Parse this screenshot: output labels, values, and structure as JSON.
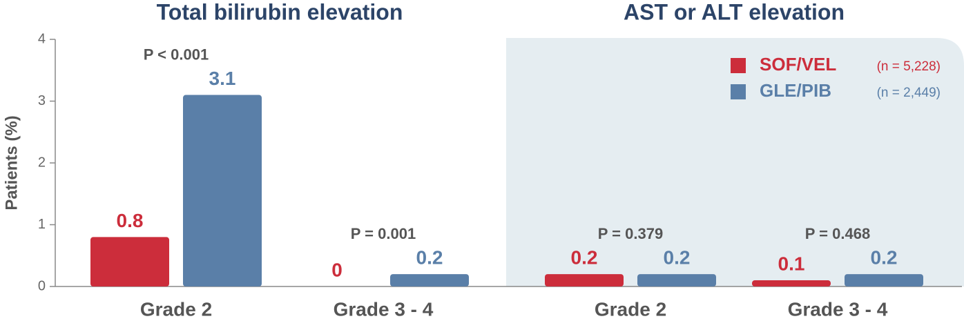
{
  "chart_data": {
    "type": "bar",
    "group_titles": [
      "Total bilirubin elevation",
      "AST or ALT elevation"
    ],
    "categories": [
      "Grade 2",
      "Grade 3 - 4",
      "Grade 2",
      "Grade 3 - 4"
    ],
    "ylabel": "Patients (%)",
    "ylim": [
      0,
      4
    ],
    "yticks": [
      0,
      1,
      2,
      3,
      4
    ],
    "series": [
      {
        "name": "SOF/VEL",
        "note": "(n = 5,228)",
        "color": "#cc2d3b",
        "values": [
          0.8,
          0,
          0.2,
          0.1
        ]
      },
      {
        "name": "GLE/PIB",
        "note": "(n = 2,449)",
        "color": "#5a7fa8",
        "values": [
          3.1,
          0.2,
          0.2,
          0.2
        ]
      }
    ],
    "annotations": [
      "P < 0.001",
      "P = 0.001",
      "P = 0.379",
      "P = 0.468"
    ],
    "legend": "top-right"
  }
}
